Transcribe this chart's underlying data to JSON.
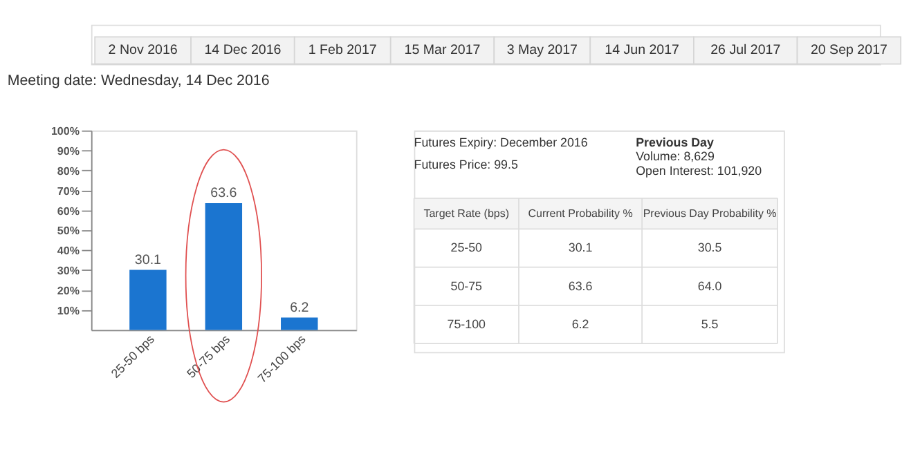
{
  "chart_data": [
    {
      "type": "other",
      "annotations": [
        "2 Nov 2016",
        "14 Dec 2016",
        "1 Feb 2017",
        "15 Mar 2017",
        "3 May 2017",
        "14 Jun 2017",
        "26 Jul 2017",
        "20 Sep 2017"
      ]
    },
    {
      "type": "bar",
      "title": "Meeting date: Wednesday, 14 Dec 2016",
      "categories": [
        "25-50 bps",
        "50-75 bps",
        "75-100 bps"
      ],
      "values": [
        30.1,
        63.6,
        6.2
      ],
      "color": "#1b75d0",
      "ylim": [
        0,
        100
      ],
      "yticks": [
        {
          "value": 10,
          "label": "10%"
        },
        {
          "value": 20,
          "label": "20%"
        },
        {
          "value": 30,
          "label": "30%"
        },
        {
          "value": 40,
          "label": "40%"
        },
        {
          "value": 50,
          "label": "50%"
        },
        {
          "value": 60,
          "label": "60%"
        },
        {
          "value": 70,
          "label": "70%"
        },
        {
          "value": 80,
          "label": "80%"
        },
        {
          "value": 90,
          "label": "90%"
        },
        {
          "value": 100,
          "label": "100%"
        }
      ],
      "data_labels": true,
      "grid": false
    },
    {
      "type": "other",
      "annotations": [
        "Futures Expiry: December 2016",
        "Futures Price: 99.5",
        "Previous Day",
        "Volume: 8,629",
        "Open Interest: 101,920"
      ]
    },
    {
      "type": "other",
      "annotations": [
        "Target Rate (bps)",
        "Current Probability %",
        "Previous Day Probability %",
        "25-50",
        "30.1",
        "30.5",
        "50-75",
        "63.6",
        "64.0",
        "75-100",
        "6.2",
        "5.5"
      ]
    }
  ]
}
